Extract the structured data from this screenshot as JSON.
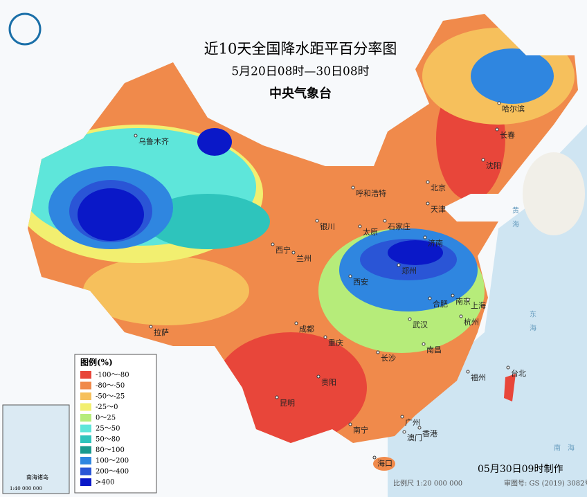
{
  "header": {
    "title": "近10天全国降水距平百分率图",
    "subtitle": "5月20日08时—30日08时",
    "agency": "中央气象台"
  },
  "legend": {
    "title": "图例(%)",
    "items": [
      {
        "label": "-100～-80",
        "color": "#e8463a"
      },
      {
        "label": "-80～-50",
        "color": "#f08a4b"
      },
      {
        "label": "-50～-25",
        "color": "#f6c05c"
      },
      {
        "label": "-25～0",
        "color": "#f2ef70"
      },
      {
        "label": "0～25",
        "color": "#b6ec7a"
      },
      {
        "label": "25～50",
        "color": "#5ee6da"
      },
      {
        "label": "50～80",
        "color": "#2ec4bc"
      },
      {
        "label": "80～100",
        "color": "#1a9a8e"
      },
      {
        "label": "100～200",
        "color": "#2f86e0"
      },
      {
        "label": "200～400",
        "color": "#2a55d6"
      },
      {
        "label": ">400",
        "color": "#0a18c8"
      }
    ]
  },
  "cities": [
    "乌鲁木齐",
    "哈尔滨",
    "长春",
    "沈阳",
    "北京",
    "天津",
    "呼和浩特",
    "石家庄",
    "太原",
    "济南",
    "银川",
    "西宁",
    "兰州",
    "西安",
    "郑州",
    "合肥",
    "南京",
    "上海",
    "杭州",
    "武汉",
    "拉萨",
    "成都",
    "重庆",
    "长沙",
    "南昌",
    "福州",
    "台北",
    "贵阳",
    "昆明",
    "南宁",
    "广州",
    "澳门",
    "香港",
    "海口"
  ],
  "seas": [
    "黄",
    "海",
    "东",
    "海",
    "南",
    "海"
  ],
  "inset": {
    "title": "南海诸岛",
    "scale": "1:40 000 000"
  },
  "footer": {
    "made": "05月30日09时制作",
    "scale": "比例尺 1:20 000 000",
    "approval": "审图号: GS (2019) 3082号"
  }
}
